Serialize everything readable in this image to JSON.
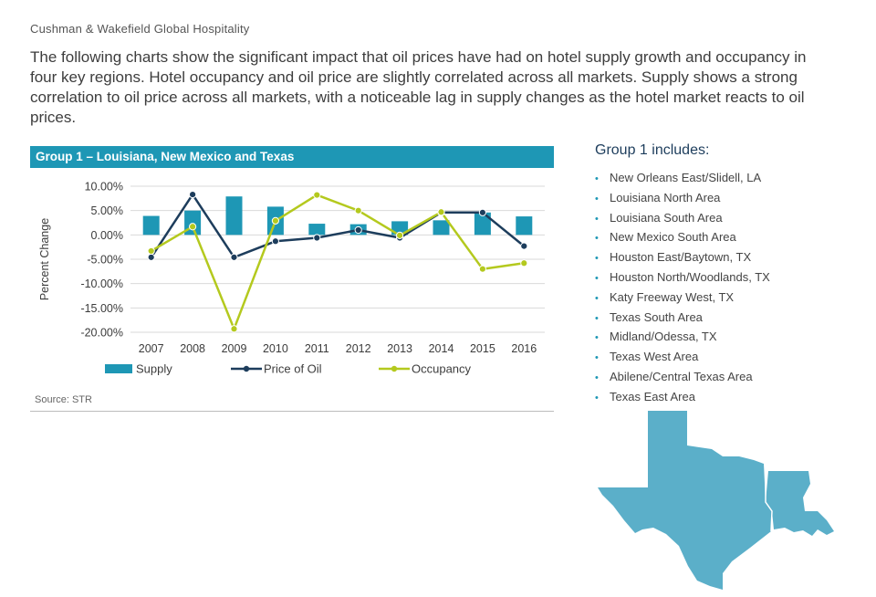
{
  "header": {
    "brand": "Cushman & Wakefield Global Hospitality",
    "intro": "The following charts show the significant impact that oil prices have had on hotel supply growth and occupancy in four key regions. Hotel occupancy and oil price are slightly correlated across all markets. Supply shows a strong correlation to oil price across all markets, with a noticeable lag in supply changes as the hotel market reacts to oil prices."
  },
  "panel": {
    "title": "Group 1 – Louisiana, New Mexico and Texas",
    "source": "Source: STR"
  },
  "group": {
    "title": "Group 1 includes:",
    "items": [
      "New Orleans East/Slidell, LA",
      "Louisiana North Area",
      "Louisiana South Area",
      "New Mexico South Area",
      "Houston East/Baytown, TX",
      "Houston North/Woodlands, TX",
      "Katy Freeway West, TX",
      "Texas South Area",
      "Midland/Odessa, TX",
      "Texas West Area",
      "Abilene/Central Texas Area",
      "Texas East Area"
    ]
  },
  "map": {
    "icon": "texas-louisiana-map-icon",
    "color": "#5bafc9"
  },
  "colors": {
    "supply": "#1e97b5",
    "oil": "#1d3d5c",
    "occupancy": "#b4c91e",
    "header": "#1e97b5"
  },
  "chart_data": {
    "type": "bar",
    "title": "",
    "xlabel": "",
    "ylabel": "Percent Change",
    "categories": [
      "2007",
      "2008",
      "2009",
      "2010",
      "2011",
      "2012",
      "2013",
      "2014",
      "2015",
      "2016"
    ],
    "ylim": [
      -20,
      10
    ],
    "yticks": [
      "10.00%",
      "5.00%",
      "0.00%",
      "-5.00%",
      "-10.00%",
      "-15.00%",
      "-20.00%"
    ],
    "grid": true,
    "legend_position": "bottom",
    "series": [
      {
        "name": "Supply",
        "kind": "bar",
        "color": "#1e97b5",
        "values": [
          3.9,
          5.0,
          7.9,
          5.8,
          2.3,
          2.2,
          2.8,
          3.0,
          4.6,
          3.8
        ]
      },
      {
        "name": "Price of Oil",
        "kind": "line",
        "color": "#1d3d5c",
        "values": [
          -4.6,
          8.3,
          -4.6,
          -1.3,
          -0.6,
          1.0,
          -0.6,
          4.6,
          4.6,
          -2.3
        ]
      },
      {
        "name": "Occupancy",
        "kind": "line",
        "color": "#b4c91e",
        "values": [
          -3.3,
          1.7,
          -19.3,
          2.9,
          8.2,
          5.0,
          -0.1,
          4.7,
          -7.0,
          -5.8
        ]
      }
    ]
  }
}
